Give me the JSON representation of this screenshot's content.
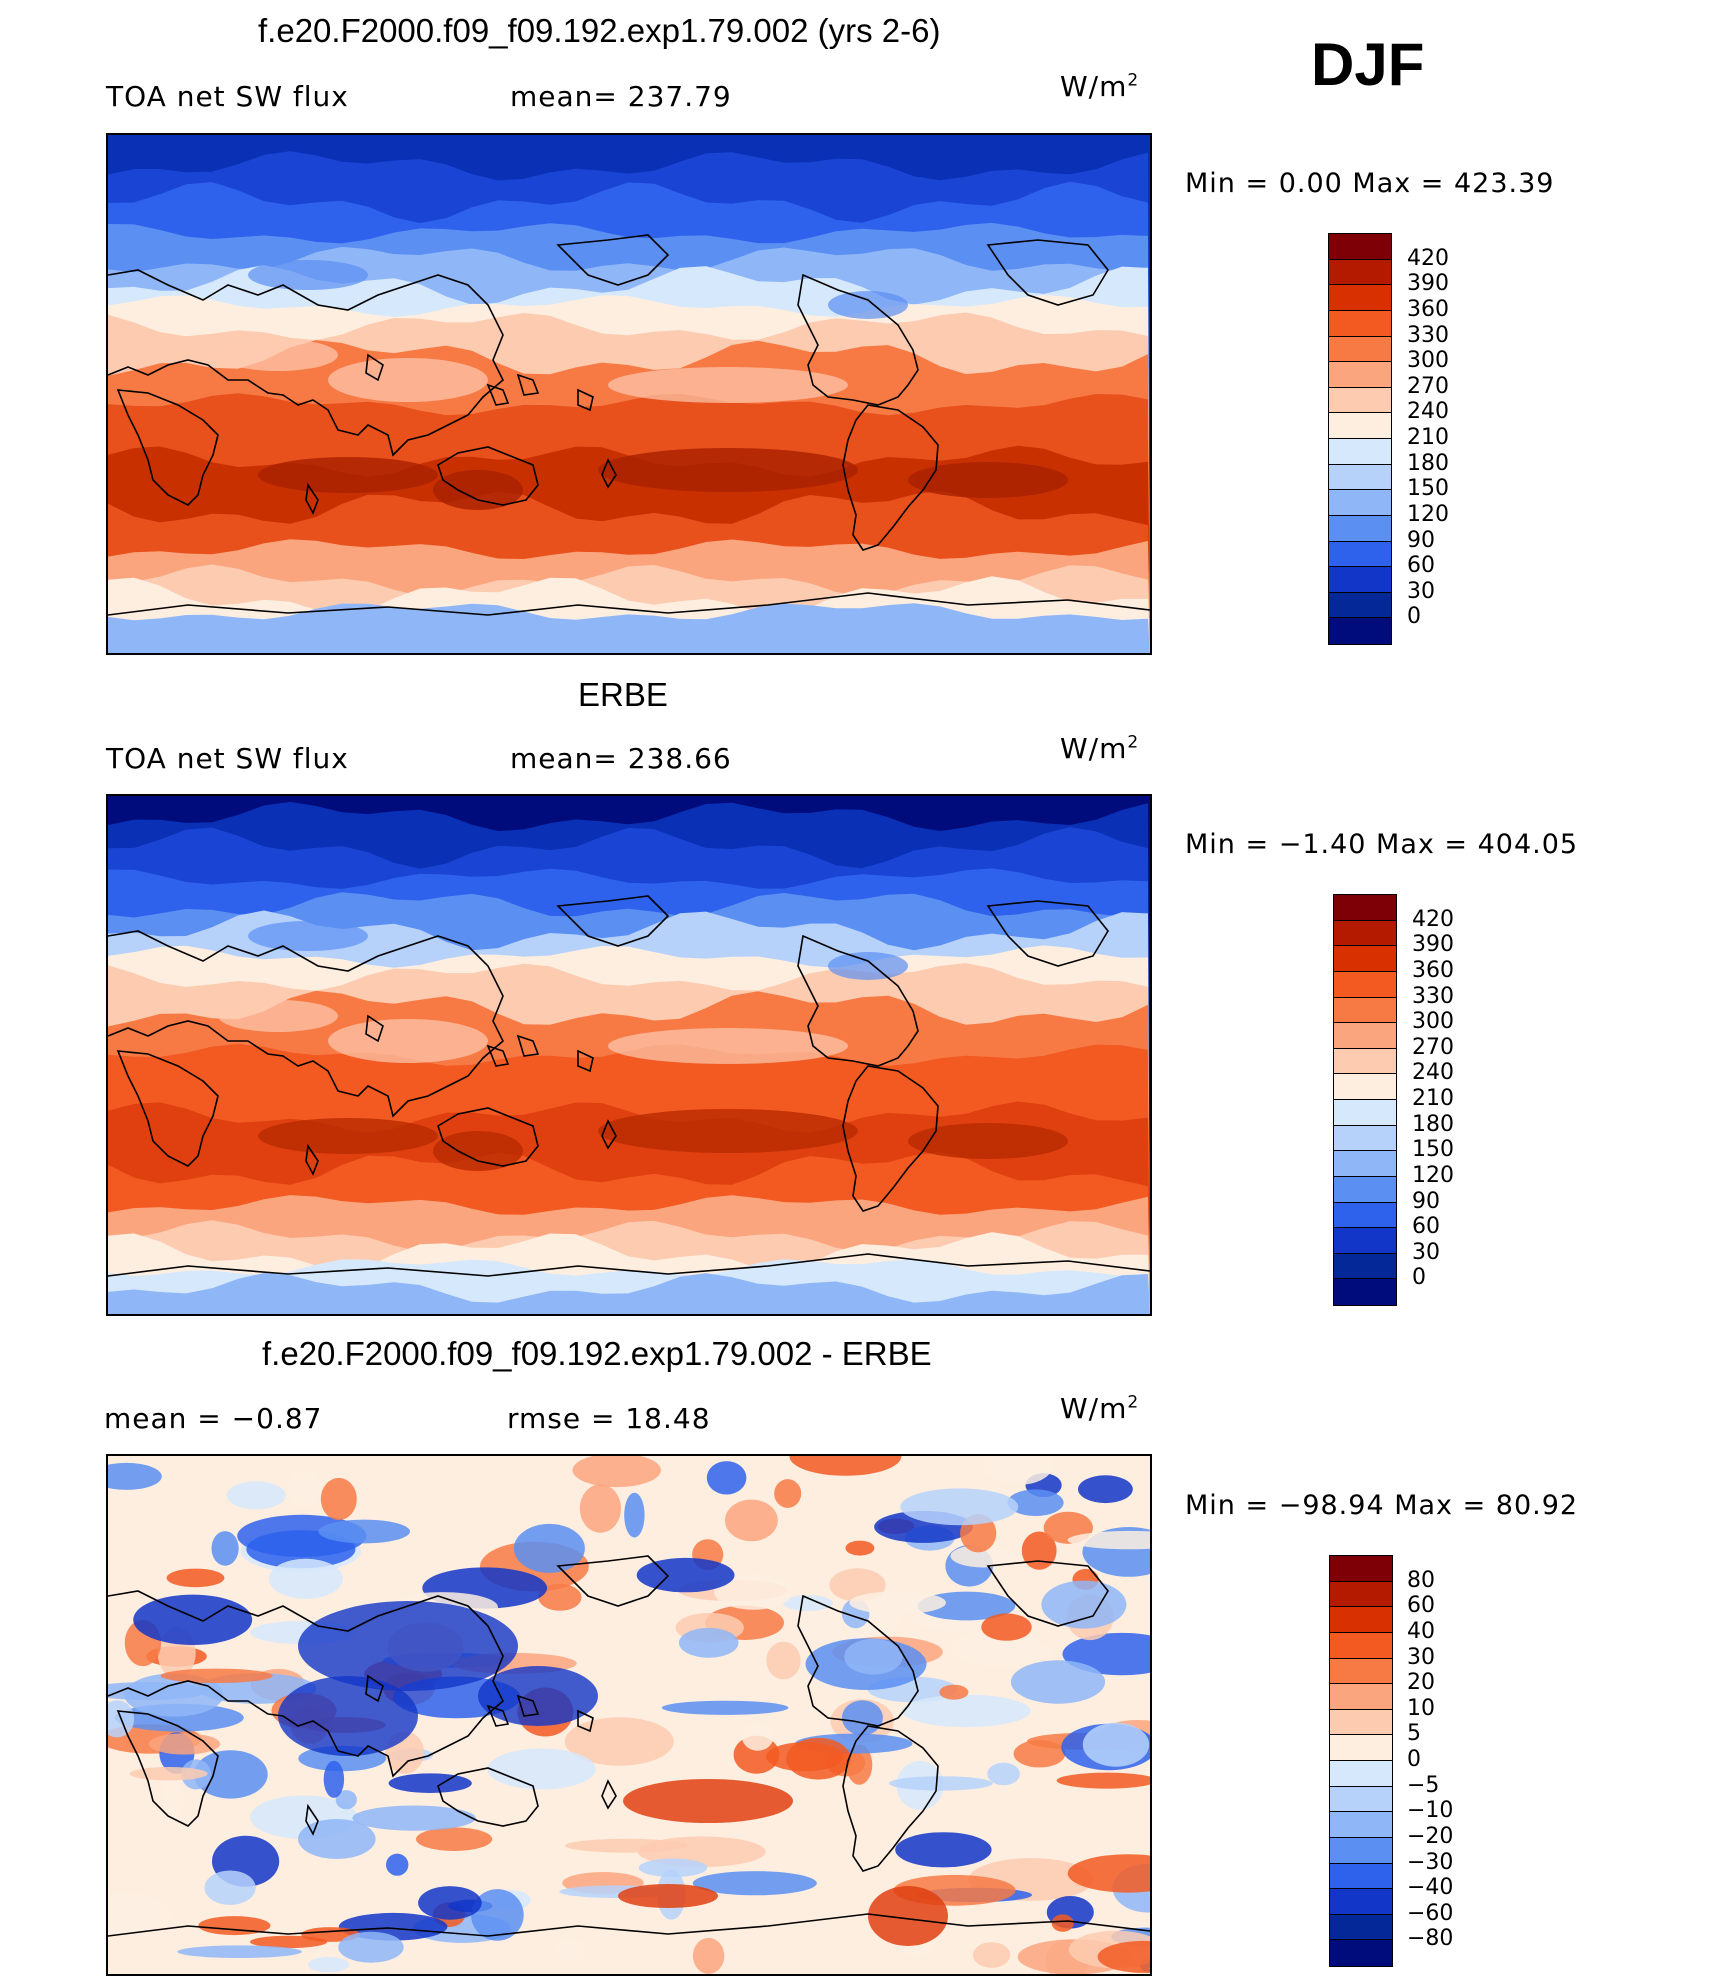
{
  "season": "DJF",
  "units_text": "W/m",
  "units_sup": "2",
  "panels": [
    {
      "title": "f.e20.F2000.f09_f09.192.exp1.79.002 (yrs 2-6)",
      "left_label": "TOA net SW flux",
      "mid_label": "mean= 237.79",
      "minmax": "Min =    0.00  Max  =  423.39"
    },
    {
      "title": "ERBE",
      "left_label": "TOA net SW flux",
      "mid_label": "mean= 238.66",
      "minmax": "Min =   −1.40  Max  =  404.05"
    },
    {
      "title": "f.e20.F2000.f09_f09.192.exp1.79.002 - ERBE",
      "left_label": "mean  =    −0.87",
      "mid_label": "rmse  =    18.48",
      "minmax": "Min  = −98.94  Max  =    80.92"
    }
  ],
  "colorbar_abs": {
    "labels": [
      "420",
      "390",
      "360",
      "330",
      "300",
      "270",
      "240",
      "210",
      "180",
      "150",
      "120",
      "90",
      "60",
      "30",
      "0"
    ],
    "colors": [
      "#7e0006",
      "#b31a00",
      "#d93000",
      "#f25a22",
      "#f77a45",
      "#fba57e",
      "#fdcbb0",
      "#fdeee0",
      "#d6e8fb",
      "#b6d2fb",
      "#8fb6f7",
      "#5b8ff2",
      "#2e62ec",
      "#1236c8",
      "#052899",
      "#000c7c"
    ]
  },
  "colorbar_diff": {
    "labels": [
      "80",
      "60",
      "40",
      "30",
      "20",
      "10",
      "5",
      "0",
      "−5",
      "−10",
      "−20",
      "−30",
      "−40",
      "−60",
      "−80"
    ],
    "colors": [
      "#7e0006",
      "#b31a00",
      "#d93000",
      "#f25a22",
      "#f77a45",
      "#fba57e",
      "#fdcbb0",
      "#fdeee0",
      "#d6e8fb",
      "#b6d2fb",
      "#8fb6f7",
      "#5b8ff2",
      "#2e62ec",
      "#1236c8",
      "#052899",
      "#000c7c"
    ]
  },
  "map_bands_abs": [
    [
      "#0a30b5",
      0.0
    ],
    [
      "#1a44d4",
      0.06
    ],
    [
      "#2e62ec",
      0.13
    ],
    [
      "#5b8ff2",
      0.19
    ],
    [
      "#8fb6f7",
      0.24
    ],
    [
      "#d6e8fb",
      0.29
    ],
    [
      "#fdeee0",
      0.33
    ],
    [
      "#fdcbb0",
      0.37
    ],
    [
      "#f77a45",
      0.43
    ],
    [
      "#e8501c",
      0.52
    ],
    [
      "#c83000",
      0.63
    ],
    [
      "#e8501c",
      0.72
    ],
    [
      "#fba57e",
      0.8
    ],
    [
      "#fdcbb0",
      0.86
    ],
    [
      "#fdeee0",
      0.89
    ],
    [
      "#8fb6f7",
      0.92
    ]
  ],
  "map_bands_obs": [
    [
      "#000c7c",
      0.0
    ],
    [
      "#0a30b5",
      0.04
    ],
    [
      "#1a44d4",
      0.1
    ],
    [
      "#2e62ec",
      0.16
    ],
    [
      "#5b8ff2",
      0.21
    ],
    [
      "#b6d2fb",
      0.26
    ],
    [
      "#fdeee0",
      0.31
    ],
    [
      "#fdcbb0",
      0.35
    ],
    [
      "#f77a45",
      0.41
    ],
    [
      "#f25a22",
      0.5
    ],
    [
      "#e04010",
      0.62
    ],
    [
      "#f25a22",
      0.72
    ],
    [
      "#fba57e",
      0.79
    ],
    [
      "#fdcbb0",
      0.85
    ],
    [
      "#fdeee0",
      0.88
    ],
    [
      "#d6e8fb",
      0.91
    ],
    [
      "#8fb6f7",
      0.95
    ]
  ]
}
